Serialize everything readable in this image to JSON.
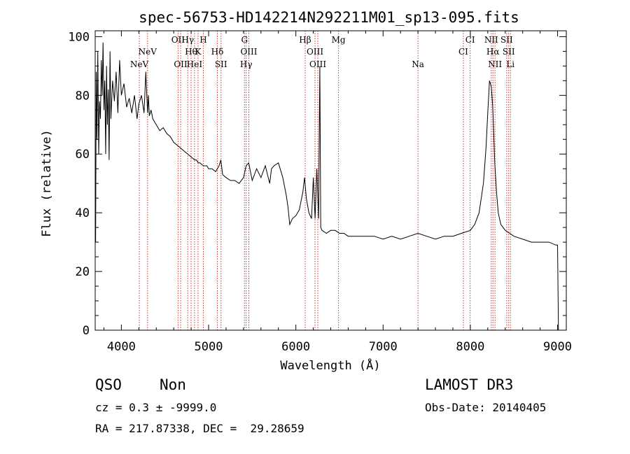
{
  "chart_data": {
    "type": "line",
    "title": "spec-56753-HD142214N292211M01_sp13-095.fits",
    "xlabel": "Wavelength (Å)",
    "ylabel": "Flux (relative)",
    "xlim": [
      3700,
      9100
    ],
    "ylim": [
      0,
      102
    ],
    "xticks": [
      4000,
      5000,
      6000,
      7000,
      8000,
      9000
    ],
    "xtick_labels": [
      "4000",
      "5000",
      "6000",
      "7000",
      "8000",
      "9000"
    ],
    "yticks": [
      0,
      20,
      40,
      60,
      80,
      100
    ],
    "ytick_labels": [
      "0",
      "20",
      "40",
      "60",
      "80",
      "100"
    ],
    "grid": false,
    "series": [
      {
        "x": [
          3705,
          3712,
          3720,
          3730,
          3740,
          3750,
          3760,
          3770,
          3780,
          3790,
          3800,
          3810,
          3820,
          3830,
          3840,
          3850,
          3860,
          3870,
          3880,
          3900,
          3920,
          3940,
          3960,
          3980,
          4000,
          4030,
          4060,
          4090,
          4120,
          4150,
          4180,
          4200,
          4230,
          4260,
          4280,
          4300,
          4310,
          4320,
          4340,
          4360,
          4400,
          4440,
          4480,
          4520,
          4560,
          4600,
          4640,
          4680,
          4720,
          4760,
          4800,
          4840,
          4860,
          4880,
          4900,
          4940,
          4980,
          5000,
          5040,
          5080,
          5120,
          5140,
          5160,
          5200,
          5250,
          5300,
          5350,
          5400,
          5430,
          5460,
          5480,
          5500,
          5550,
          5600,
          5650,
          5700,
          5720,
          5750,
          5800,
          5850,
          5890,
          5910,
          5930,
          5960,
          6000,
          6040,
          6080,
          6100,
          6120,
          6150,
          6180,
          6200,
          6220,
          6240,
          6260,
          6275,
          6285,
          6300,
          6350,
          6400,
          6450,
          6500,
          6550,
          6600,
          6700,
          6800,
          6900,
          7000,
          7100,
          7200,
          7300,
          7400,
          7500,
          7600,
          7700,
          7800,
          7900,
          8000,
          8050,
          8100,
          8150,
          8180,
          8200,
          8220,
          8240,
          8255,
          8265,
          8280,
          8300,
          8320,
          8350,
          8400,
          8450,
          8500,
          8600,
          8700,
          8800,
          8900,
          8980,
          9000,
          9010
        ],
        "values": [
          30,
          88,
          65,
          95,
          60,
          78,
          72,
          92,
          80,
          98,
          75,
          85,
          60,
          90,
          70,
          82,
          58,
          95,
          72,
          85,
          78,
          88,
          74,
          92,
          80,
          84,
          76,
          79,
          74,
          80,
          72,
          77,
          80,
          74,
          88,
          74,
          80,
          73,
          75,
          72,
          70,
          68,
          69,
          67,
          66,
          64,
          63,
          62,
          61,
          60,
          59,
          58,
          58,
          57,
          57,
          56,
          56,
          55,
          55,
          54,
          56,
          58,
          53,
          52,
          51,
          51,
          50,
          52,
          56,
          57,
          54,
          51,
          55,
          52,
          56,
          50,
          55,
          56,
          57,
          52,
          46,
          42,
          36,
          38,
          39,
          41,
          47,
          52,
          45,
          40,
          38,
          52,
          38,
          55,
          38,
          90,
          35,
          34,
          33,
          34,
          34,
          33,
          33,
          32,
          32,
          32,
          32,
          31,
          32,
          31,
          32,
          33,
          32,
          31,
          32,
          32,
          33,
          34,
          36,
          40,
          50,
          62,
          74,
          85,
          83,
          77,
          70,
          57,
          47,
          40,
          36,
          34,
          33,
          32,
          31,
          30,
          30,
          30,
          29,
          29,
          0
        ]
      }
    ],
    "line_markers": [
      {
        "wavelength": 4206,
        "label": "NeV",
        "row": 2
      },
      {
        "wavelength": 4300,
        "label": "NeV",
        "row": 1
      },
      {
        "wavelength": 4650,
        "label": "OII",
        "row": 0
      },
      {
        "wavelength": 4679,
        "label": "OII",
        "row": 2
      },
      {
        "wavelength": 4761,
        "label": "Hγ",
        "row": 0
      },
      {
        "wavelength": 4799,
        "label": "Hθ",
        "row": 1
      },
      {
        "wavelength": 4839,
        "label": "HeI",
        "row": 2
      },
      {
        "wavelength": 4879,
        "label": "K",
        "row": 1
      },
      {
        "wavelength": 4940,
        "label": "H",
        "row": 0
      },
      {
        "wavelength": 5100,
        "label": "Hδ",
        "row": 1
      },
      {
        "wavelength": 5142,
        "label": "SII",
        "row": 2
      },
      {
        "wavelength": 5411,
        "label": "G",
        "row": 0
      },
      {
        "wavelength": 5461,
        "label": "OIII",
        "row": 1
      },
      {
        "wavelength": 5431,
        "label": "Hγ",
        "row": 2
      },
      {
        "wavelength": 6107,
        "label": "Hβ",
        "row": 0
      },
      {
        "wavelength": 6220,
        "label": "OIII",
        "row": 1
      },
      {
        "wavelength": 6252,
        "label": "OIII",
        "row": 2
      },
      {
        "wavelength": 6489,
        "label": "Mg",
        "row": 0
      },
      {
        "wavelength": 7400,
        "label": "Na",
        "row": 2
      },
      {
        "wavelength": 7920,
        "label": "CI",
        "row": 1
      },
      {
        "wavelength": 7998,
        "label": "CI",
        "row": 0
      },
      {
        "wavelength": 8240,
        "label": "NII",
        "row": 0
      },
      {
        "wavelength": 8259,
        "label": "Hα",
        "row": 1
      },
      {
        "wavelength": 8283,
        "label": "NII",
        "row": 2
      },
      {
        "wavelength": 8417,
        "label": "SII",
        "row": 0
      },
      {
        "wavelength": 8440,
        "label": "SII",
        "row": 1
      },
      {
        "wavelength": 8460,
        "label": "Li",
        "row": 2
      }
    ]
  },
  "info": {
    "class": "QSO",
    "subclass": "Non",
    "cz": "cz = 0.3 ± -9999.0",
    "coords": "RA = 217.87338, DEC =  29.28659",
    "survey": "LAMOST DR3",
    "obs_date": "Obs-Date: 20140405"
  },
  "colors": {
    "spectrum": "#000000",
    "marker": "#d03030"
  }
}
